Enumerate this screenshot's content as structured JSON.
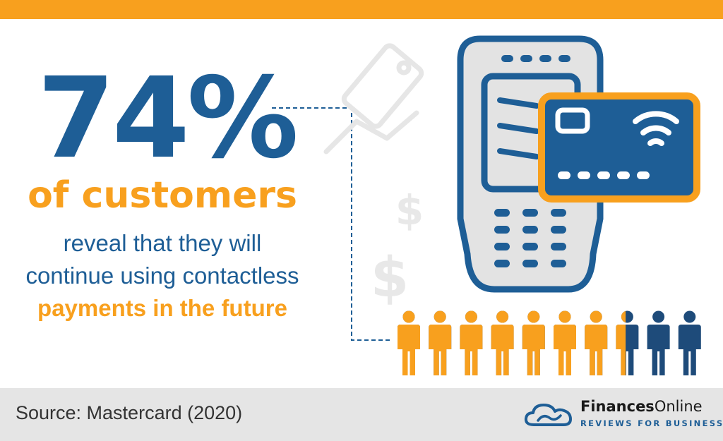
{
  "headline": {
    "percent": "74%",
    "subject": "of customers",
    "line1": "reveal that they will",
    "line2": "continue using contactless",
    "highlight": "payments in the future"
  },
  "people_chart": {
    "total": 10,
    "highlighted_fraction": 0.74,
    "highlight_color": "#F8A01E",
    "rest_color": "#1E4B7A"
  },
  "colors": {
    "accent": "#F8A01E",
    "primary": "#1E5E96",
    "footer_bg": "#E5E5E5"
  },
  "icons": [
    "card-swipe-icon",
    "dollar-sign-icon",
    "payment-terminal-icon",
    "contactless-card-icon",
    "wifi-icon",
    "person-icon",
    "cloud-logo-icon"
  ],
  "footer": {
    "source": "Source: Mastercard (2020)",
    "brand_bold": "Finances",
    "brand_light": "Online",
    "brand_tagline": "REVIEWS FOR BUSINESS"
  }
}
